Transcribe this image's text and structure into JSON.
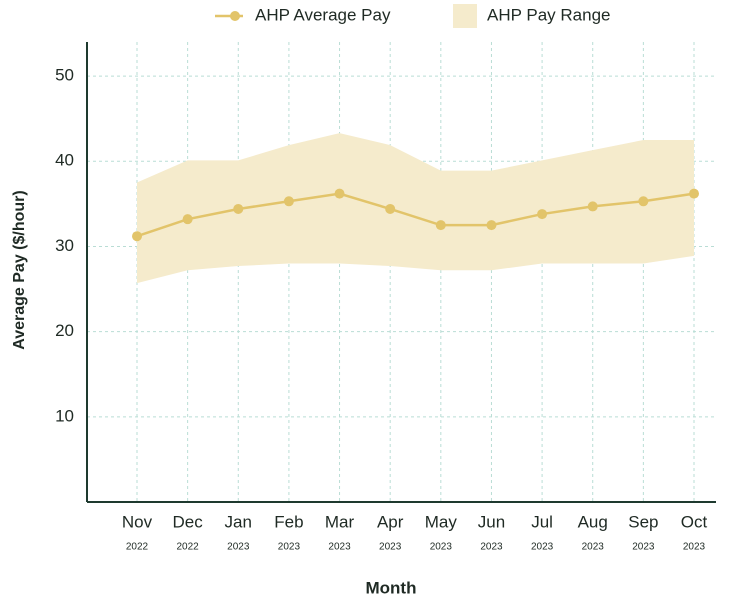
{
  "chart_data": {
    "type": "line",
    "x_label": "Month",
    "y_label": "Average Pay ($/hour)",
    "categories": [
      "Nov",
      "Dec",
      "Jan",
      "Feb",
      "Mar",
      "Apr",
      "May",
      "Jun",
      "Jul",
      "Aug",
      "Sep",
      "Oct"
    ],
    "category_years": [
      "2022",
      "2022",
      "2023",
      "2023",
      "2023",
      "2023",
      "2023",
      "2023",
      "2023",
      "2023",
      "2023",
      "2023"
    ],
    "series": [
      {
        "name": "AHP Average Pay",
        "color": "#e2c46a",
        "values": [
          31.2,
          33.2,
          34.4,
          35.3,
          36.2,
          34.4,
          32.5,
          32.5,
          33.8,
          34.7,
          35.3,
          36.2
        ]
      }
    ],
    "range": {
      "name": "AHP Pay Range",
      "color": "#f5ebcc",
      "upper": [
        37.5,
        40.1,
        40.1,
        41.9,
        43.3,
        41.9,
        38.9,
        38.9,
        40.1,
        41.3,
        42.5,
        42.5
      ],
      "lower": [
        25.7,
        27.2,
        27.7,
        28.0,
        28.0,
        27.7,
        27.2,
        27.2,
        28.0,
        28.0,
        28.0,
        28.9
      ]
    },
    "ylim": [
      0,
      54
    ],
    "yticks": [
      10,
      20,
      30,
      40,
      50
    ],
    "grid": true
  }
}
